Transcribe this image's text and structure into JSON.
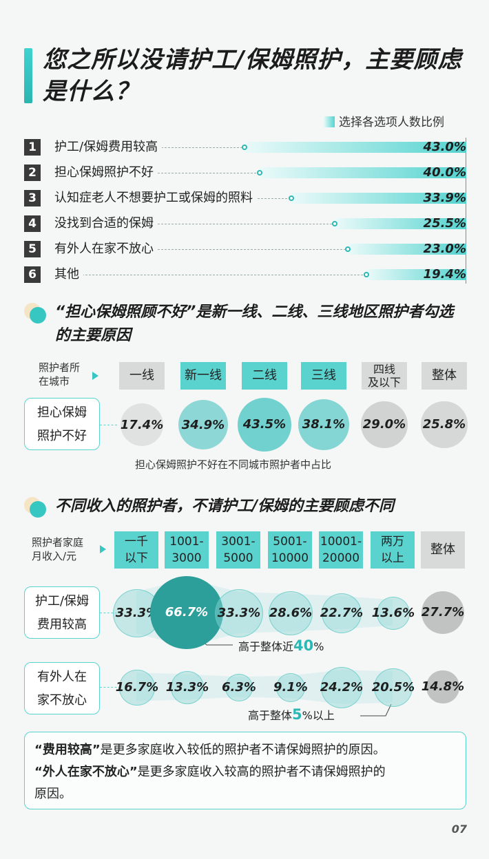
{
  "title": "您之所以没请护工/保姆照护，主要顾虑是什么？",
  "legend": "选择各选项人数比例",
  "colors": {
    "teal": "#36c7c3",
    "teal_light": "#5ad3cf",
    "grey": "#d8d9d9",
    "dark": "#3a3a3a"
  },
  "chart_data": [
    {
      "type": "bar",
      "orientation": "horizontal",
      "title": "您之所以没请护工/保姆照护，主要顾虑是什么？",
      "legend": "选择各选项人数比例",
      "categories": [
        "护工/保姆费用较高",
        "担心保姆照护不好",
        "认知症老人不想要护工或保姆的照料",
        "没找到合适的保姆",
        "有外人在家不放心",
        "其他"
      ],
      "values": [
        43.0,
        40.0,
        33.9,
        25.5,
        23.0,
        19.4
      ],
      "value_labels": [
        "43.0%",
        "40.0%",
        "33.9%",
        "25.5%",
        "23.0%",
        "19.4%"
      ],
      "ranks": [
        "1",
        "2",
        "3",
        "4",
        "5",
        "6"
      ]
    },
    {
      "type": "bubble",
      "title": "“担心保姆照顾不好”是新一线、二线、三线地区照护者勾选的主要原因",
      "row_header": [
        "照护者所",
        "在城市"
      ],
      "row_label": [
        "担心保姆",
        "照护不好"
      ],
      "categories": [
        [
          "一线"
        ],
        [
          "新一线"
        ],
        [
          "二线"
        ],
        [
          "三线"
        ],
        [
          "四线",
          "及以下"
        ],
        [
          "整体"
        ]
      ],
      "highlight": [
        false,
        true,
        true,
        true,
        false,
        false
      ],
      "values": [
        17.4,
        34.9,
        43.5,
        38.1,
        29.0,
        25.8
      ],
      "value_labels": [
        "17.4%",
        "34.9%",
        "43.5%",
        "38.1%",
        "29.0%",
        "25.8%"
      ],
      "caption": "担心保姆照护不好在不同城市照护者中占比"
    },
    {
      "type": "bubble",
      "title": "不同收入的照护者，不请护工/保姆的主要顾虑不同",
      "row_header": [
        "照护者家庭",
        "月收入/元"
      ],
      "categories": [
        [
          "一千",
          "以下"
        ],
        [
          "1001-",
          "3000"
        ],
        [
          "3001-",
          "5000"
        ],
        [
          "5001-",
          "10000"
        ],
        [
          "10001-",
          "20000"
        ],
        [
          "两万",
          "以上"
        ],
        [
          "整体"
        ]
      ],
      "highlight": [
        true,
        true,
        true,
        true,
        true,
        true,
        false
      ],
      "series": [
        {
          "name": [
            "护工/保姆",
            "费用较高"
          ],
          "values": [
            33.3,
            66.7,
            33.3,
            28.6,
            22.7,
            13.6,
            27.7
          ],
          "value_labels": [
            "33.3%",
            "66.7%",
            "33.3%",
            "28.6%",
            "22.7%",
            "13.6%",
            "27.7%"
          ],
          "annotation": {
            "pre": "高于整体近",
            "num": "40",
            "post": "%"
          }
        },
        {
          "name": [
            "有外人在",
            "家不放心"
          ],
          "values": [
            16.7,
            13.3,
            6.3,
            9.1,
            24.2,
            20.5,
            14.8
          ],
          "value_labels": [
            "16.7%",
            "13.3%",
            "6.3%",
            "9.1%",
            "24.2%",
            "20.5%",
            "14.8%"
          ],
          "annotation": {
            "pre": "高于整体",
            "num": "5",
            "post": "%以上"
          }
        }
      ]
    }
  ],
  "note": {
    "line1_bold": "“费用较高”",
    "line1_rest": "是更多家庭收入较低的照护者不请保姆照护的原因。",
    "line2_bold": "“外人在家不放心”",
    "line2_rest": "是更多家庭收入较高的照护者不请保姆照护的",
    "line3": "原因。"
  },
  "page_number": "07"
}
